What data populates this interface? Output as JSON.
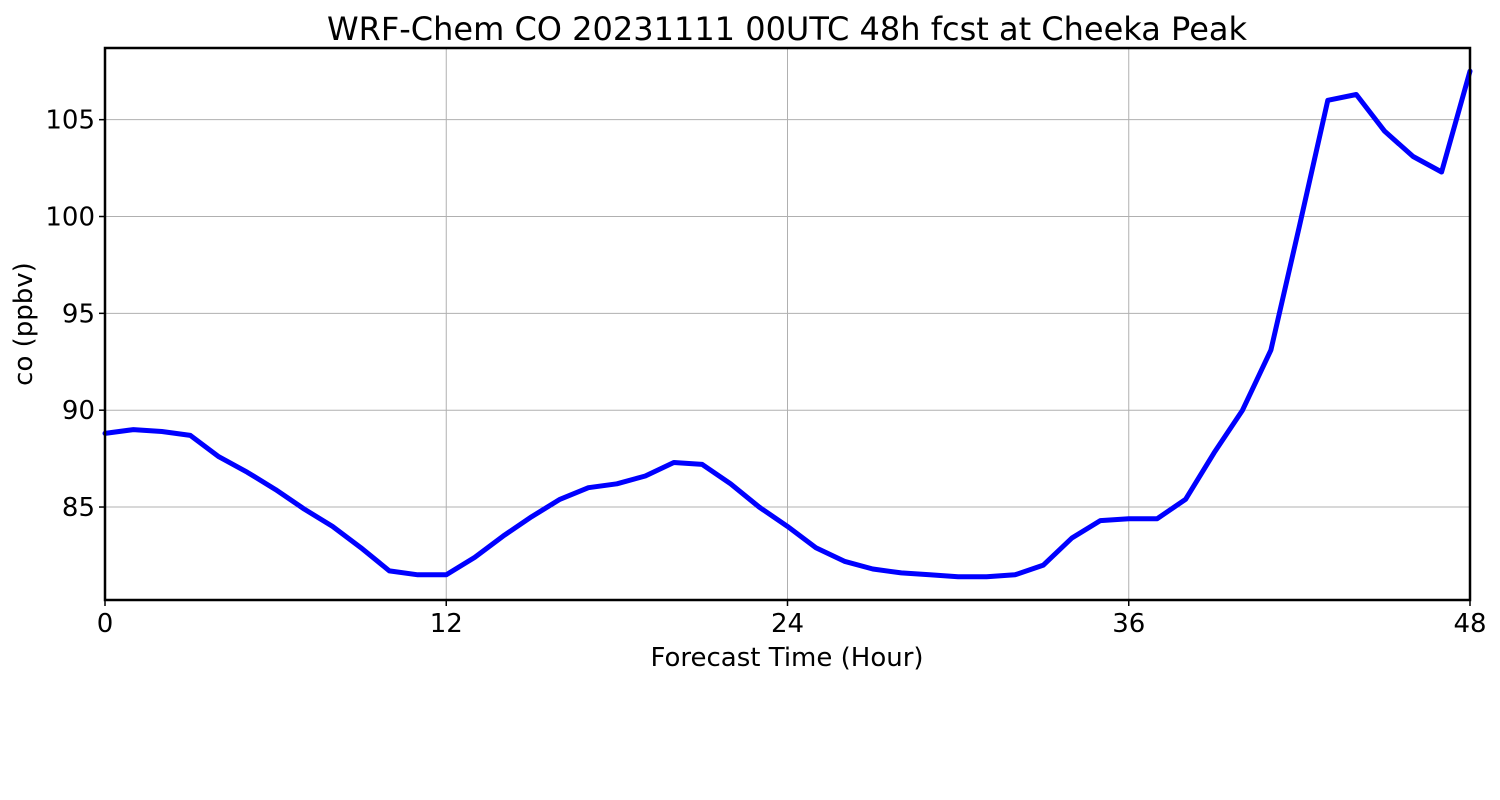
{
  "chart_data": {
    "type": "line",
    "title": "WRF-Chem CO  20231111 00UTC 48h fcst at Cheeka Peak",
    "xlabel": "Forecast Time (Hour)",
    "ylabel": "co  (ppbv)",
    "xlim": [
      0,
      48
    ],
    "ylim": [
      80.2,
      108.7
    ],
    "xticks": [
      0,
      12,
      24,
      36,
      48
    ],
    "yticks": [
      85,
      90,
      95,
      100,
      105
    ],
    "grid": true,
    "series": [
      {
        "color": "#0000ff",
        "x": [
          0,
          1,
          2,
          3,
          4,
          5,
          6,
          7,
          8,
          9,
          10,
          11,
          12,
          13,
          14,
          15,
          16,
          17,
          18,
          19,
          20,
          21,
          22,
          23,
          24,
          25,
          26,
          27,
          28,
          29,
          30,
          31,
          32,
          33,
          34,
          35,
          36,
          37,
          38,
          39,
          40,
          41,
          42,
          43,
          44,
          45,
          46,
          47,
          48
        ],
        "values": [
          88.8,
          89.0,
          88.9,
          88.7,
          87.6,
          86.8,
          85.9,
          84.9,
          84.0,
          82.9,
          81.7,
          81.5,
          81.5,
          82.4,
          83.5,
          84.5,
          85.4,
          86.0,
          86.2,
          86.6,
          87.3,
          87.2,
          86.2,
          85.0,
          84.0,
          82.9,
          82.2,
          81.8,
          81.6,
          81.5,
          81.4,
          81.4,
          81.5,
          82.0,
          83.4,
          84.3,
          84.4,
          84.4,
          85.4,
          87.8,
          90.0,
          93.1,
          99.5,
          106.0,
          106.3,
          104.4,
          103.1,
          102.3,
          107.5
        ]
      }
    ]
  }
}
